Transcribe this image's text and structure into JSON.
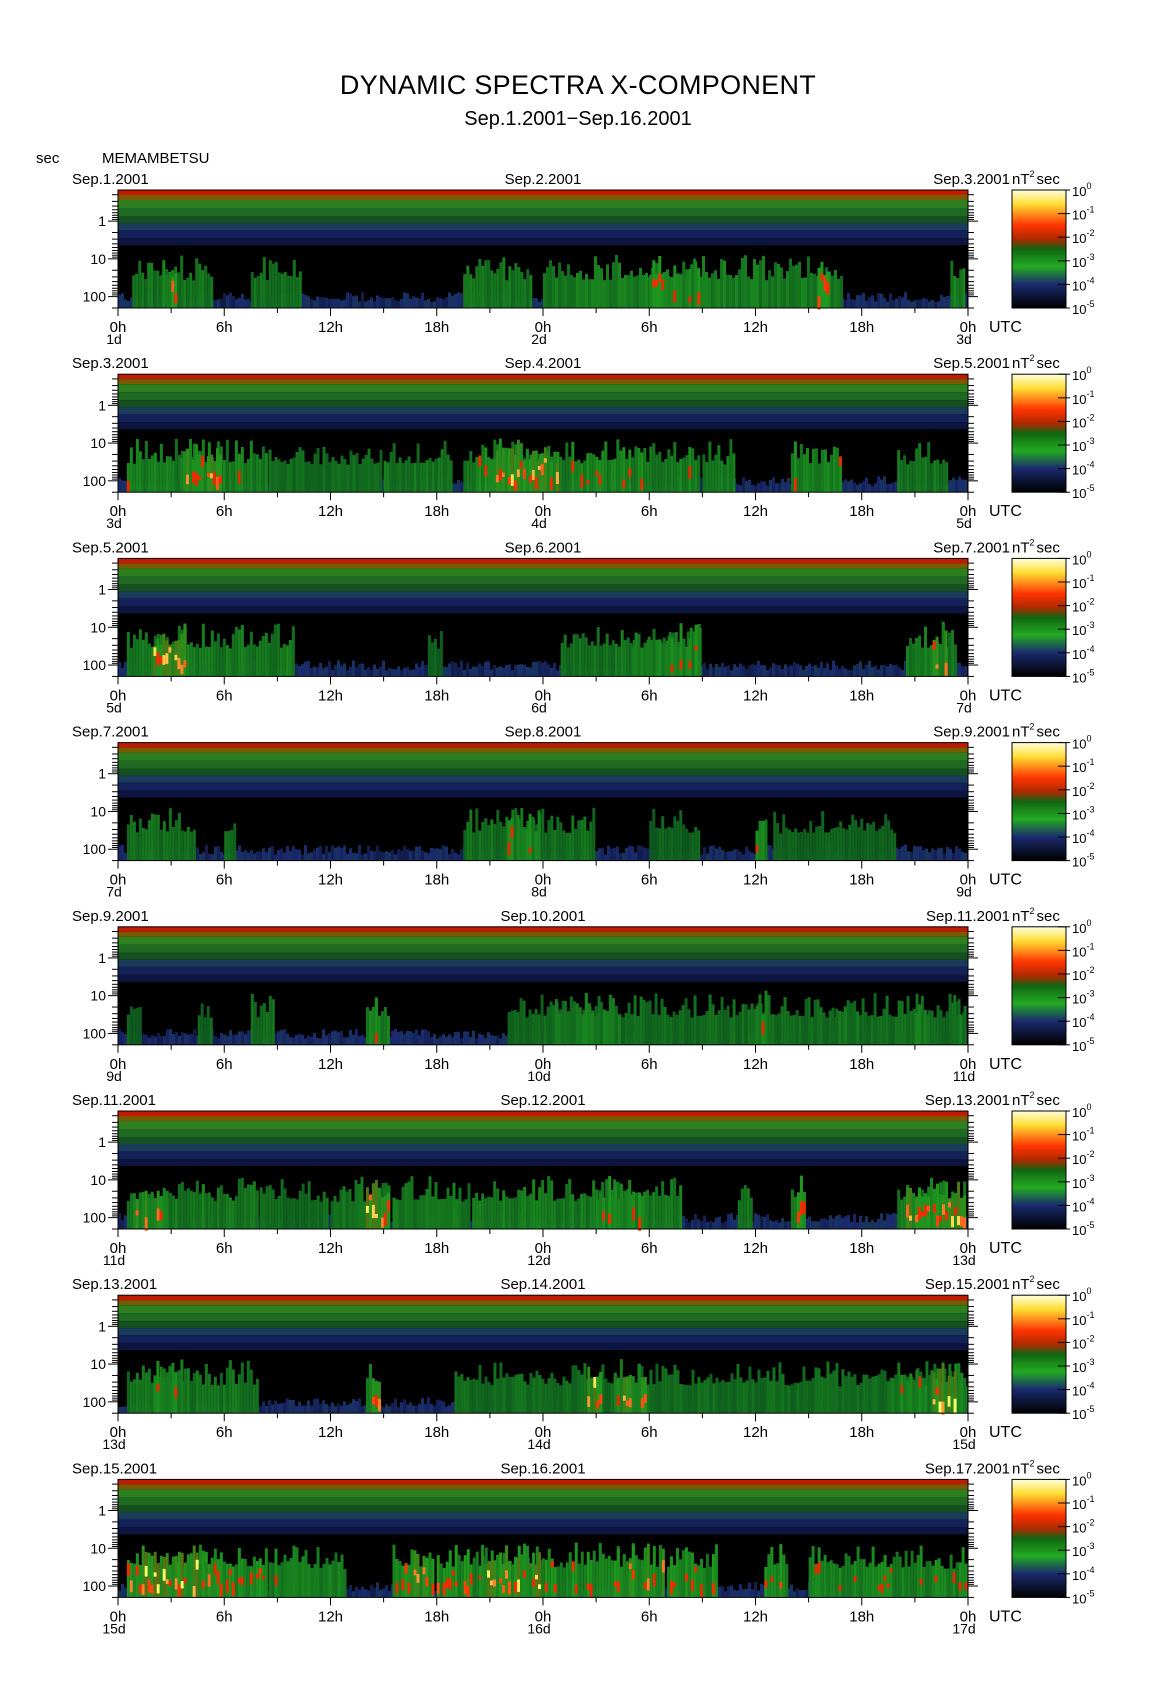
{
  "title": "DYNAMIC SPECTRA X-COMPONENT",
  "subtitle": "Sep.1.2001−Sep.16.2001",
  "y_unit": "sec",
  "station": "MEMAMBETSU",
  "colorbar_unit": "nT",
  "colorbar_unit_exp": "2",
  "colorbar_unit_suffix": "sec",
  "colorbar_ticks": [
    {
      "base": "10",
      "exp": "0"
    },
    {
      "base": "10",
      "exp": "-1"
    },
    {
      "base": "10",
      "exp": "-2"
    },
    {
      "base": "10",
      "exp": "-3"
    },
    {
      "base": "10",
      "exp": "-4"
    },
    {
      "base": "10",
      "exp": "-5"
    }
  ],
  "colors": {
    "high": "#ffff66",
    "mid_high": "#ff2a00",
    "mid": "#1f9a1f",
    "low": "#1a2a6e",
    "floor": "#000000"
  },
  "chart_data": {
    "type": "heatmap",
    "x_unit": "UTC",
    "y_axis_label": "sec",
    "y_scale": "log",
    "y_ticks": [
      "1",
      "10",
      "100"
    ],
    "hour_ticks": [
      "0h",
      "6h",
      "12h",
      "18h",
      "0h",
      "6h",
      "12h",
      "18h",
      "0h"
    ],
    "value_scale": {
      "min_exp": -5,
      "max_exp": 0,
      "unit": "nT²sec"
    },
    "panels": [
      {
        "left_date": "Sep.1.2001",
        "mid_date": "Sep.2.2001",
        "right_date": "Sep.3.2001",
        "day_labels": [
          "1d",
          "2d",
          "3d"
        ],
        "bursts": [
          [
            0.8,
            5.5,
            0.55
          ],
          [
            2.5,
            3.5,
            0.85
          ],
          [
            7.5,
            10.5,
            0.5
          ],
          [
            19.5,
            20,
            0.8
          ],
          [
            19.5,
            23.5,
            0.55
          ],
          [
            24,
            41,
            0.6
          ],
          [
            30,
            33,
            0.75
          ],
          [
            39.5,
            40.2,
            1.0
          ],
          [
            47,
            48,
            0.7
          ]
        ]
      },
      {
        "left_date": "Sep.3.2001",
        "mid_date": "Sep.4.2001",
        "right_date": "Sep.5.2001",
        "day_labels": [
          "3d",
          "4d",
          "5d"
        ],
        "bursts": [
          [
            0.5,
            8.5,
            0.65
          ],
          [
            3.5,
            6,
            0.9
          ],
          [
            8.5,
            15,
            0.45
          ],
          [
            15,
            19,
            0.55
          ],
          [
            19.5,
            33,
            0.7
          ],
          [
            21,
            25,
            0.95
          ],
          [
            33,
            35,
            0.6
          ],
          [
            38,
            41,
            0.7
          ],
          [
            44,
            47,
            0.55
          ]
        ]
      },
      {
        "left_date": "Sep.5.2001",
        "mid_date": "Sep.6.2001",
        "right_date": "Sep.7.2001",
        "day_labels": [
          "5d",
          "6d",
          "7d"
        ],
        "bursts": [
          [
            0.5,
            10,
            0.6
          ],
          [
            2,
            4,
            0.95
          ],
          [
            8.5,
            9,
            0.45
          ],
          [
            17.5,
            18.5,
            0.35
          ],
          [
            25,
            33,
            0.55
          ],
          [
            29,
            33,
            0.7
          ],
          [
            44.5,
            47.5,
            0.6
          ],
          [
            46,
            47,
            0.85
          ]
        ]
      },
      {
        "left_date": "Sep.7.2001",
        "mid_date": "Sep.8.2001",
        "right_date": "Sep.9.2001",
        "day_labels": [
          "7d",
          "8d",
          "9d"
        ],
        "bursts": [
          [
            0.5,
            4.5,
            0.5
          ],
          [
            6,
            6.8,
            0.45
          ],
          [
            19.5,
            27,
            0.5
          ],
          [
            22,
            24,
            0.7
          ],
          [
            30,
            33,
            0.35
          ],
          [
            36,
            36.7,
            0.7
          ],
          [
            37,
            44,
            0.35
          ]
        ]
      },
      {
        "left_date": "Sep.9.2001",
        "mid_date": "Sep.10.2001",
        "right_date": "Sep.11.2001",
        "day_labels": [
          "9d",
          "10d",
          "11d"
        ],
        "bursts": [
          [
            0.5,
            1.5,
            0.35
          ],
          [
            4.5,
            5.5,
            0.4
          ],
          [
            7.5,
            9,
            0.45
          ],
          [
            14,
            15.5,
            0.7
          ],
          [
            22,
            48,
            0.45
          ],
          [
            24.5,
            28.5,
            0.6
          ],
          [
            36,
            37,
            0.7
          ],
          [
            40.5,
            42,
            0.55
          ],
          [
            45,
            46,
            0.65
          ],
          [
            47,
            48,
            0.6
          ]
        ]
      },
      {
        "left_date": "Sep.11.2001",
        "mid_date": "Sep.12.2001",
        "right_date": "Sep.13.2001",
        "day_labels": [
          "11d",
          "12d",
          "13d"
        ],
        "bursts": [
          [
            0.5,
            8,
            0.6
          ],
          [
            1,
            3,
            0.85
          ],
          [
            8,
            12,
            0.45
          ],
          [
            12,
            15.5,
            0.5
          ],
          [
            14,
            15.5,
            1.0
          ],
          [
            15.5,
            20,
            0.55
          ],
          [
            20,
            32,
            0.6
          ],
          [
            27,
            30,
            0.75
          ],
          [
            35,
            36,
            0.7
          ],
          [
            38,
            39,
            0.85
          ],
          [
            44,
            48,
            0.6
          ],
          [
            44.5,
            48,
            0.95
          ]
        ]
      },
      {
        "left_date": "Sep.13.2001",
        "mid_date": "Sep.14.2001",
        "right_date": "Sep.15.2001",
        "day_labels": [
          "13d",
          "14d",
          "15d"
        ],
        "bursts": [
          [
            0.5,
            8,
            0.55
          ],
          [
            2,
            4,
            0.7
          ],
          [
            14,
            15,
            0.9
          ],
          [
            19,
            48,
            0.45
          ],
          [
            26.5,
            27.5,
            1.0
          ],
          [
            28,
            30,
            0.9
          ],
          [
            43.5,
            48,
            0.65
          ],
          [
            46,
            47.5,
            1.0
          ]
        ]
      },
      {
        "left_date": "Sep.15.2001",
        "mid_date": "Sep.16.2001",
        "right_date": "Sep.17.2001",
        "day_labels": [
          "15d",
          "16d",
          "17d"
        ],
        "bursts": [
          [
            0.5,
            8.5,
            0.85
          ],
          [
            1,
            6,
            1.0
          ],
          [
            8.5,
            13,
            0.65
          ],
          [
            15.5,
            18,
            0.9
          ],
          [
            18,
            30,
            0.8
          ],
          [
            20.5,
            24,
            1.0
          ],
          [
            28,
            31,
            0.85
          ],
          [
            31,
            34,
            0.75
          ],
          [
            36.5,
            38,
            0.8
          ],
          [
            39,
            48,
            0.7
          ]
        ]
      }
    ]
  }
}
